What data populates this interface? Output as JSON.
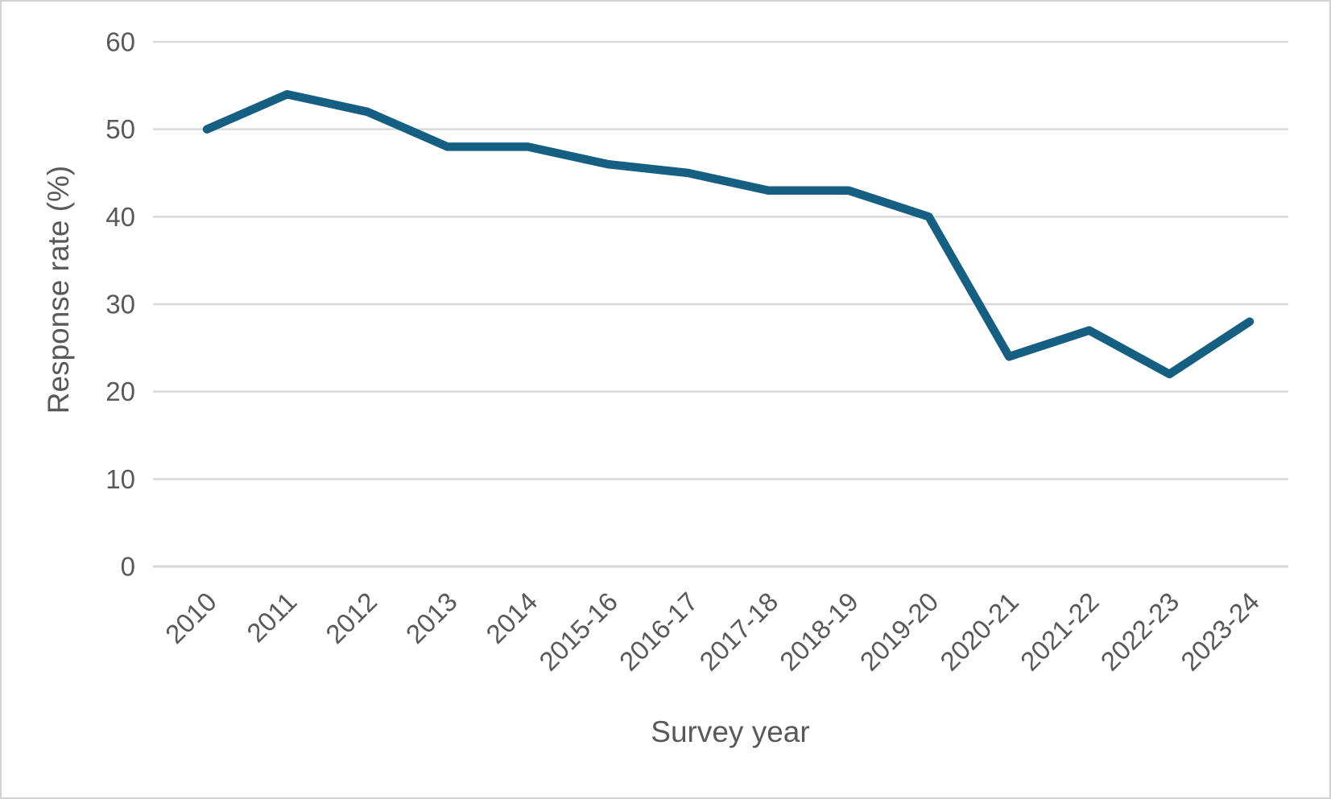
{
  "figure": {
    "background": "#ffffff",
    "border_color": "#d2d2d2"
  },
  "chart_data": {
    "type": "line",
    "title": "",
    "categories": [
      "2010",
      "2011",
      "2012",
      "2013",
      "2014",
      "2015-16",
      "2016-17",
      "2017-18",
      "2018-19",
      "2019-20",
      "2020-21",
      "2021-22",
      "2022-23",
      "2023-24"
    ],
    "values": [
      50,
      54,
      52,
      48,
      48,
      46,
      45,
      43,
      43,
      40,
      24,
      27,
      22,
      28
    ],
    "xlabel": "Survey year",
    "ylabel": "Response rate (%)",
    "ylim": [
      0,
      60
    ],
    "yticks": [
      0,
      10,
      20,
      30,
      40,
      50,
      60
    ],
    "grid": "horizontal",
    "legend": "none",
    "x_label_rotation_deg": 45,
    "colors": {
      "line": "#156082",
      "gridline": "#d9d9d9",
      "axis_line": "#d6d6d6",
      "tick_label": "#595959",
      "axis_title": "#595959"
    }
  }
}
